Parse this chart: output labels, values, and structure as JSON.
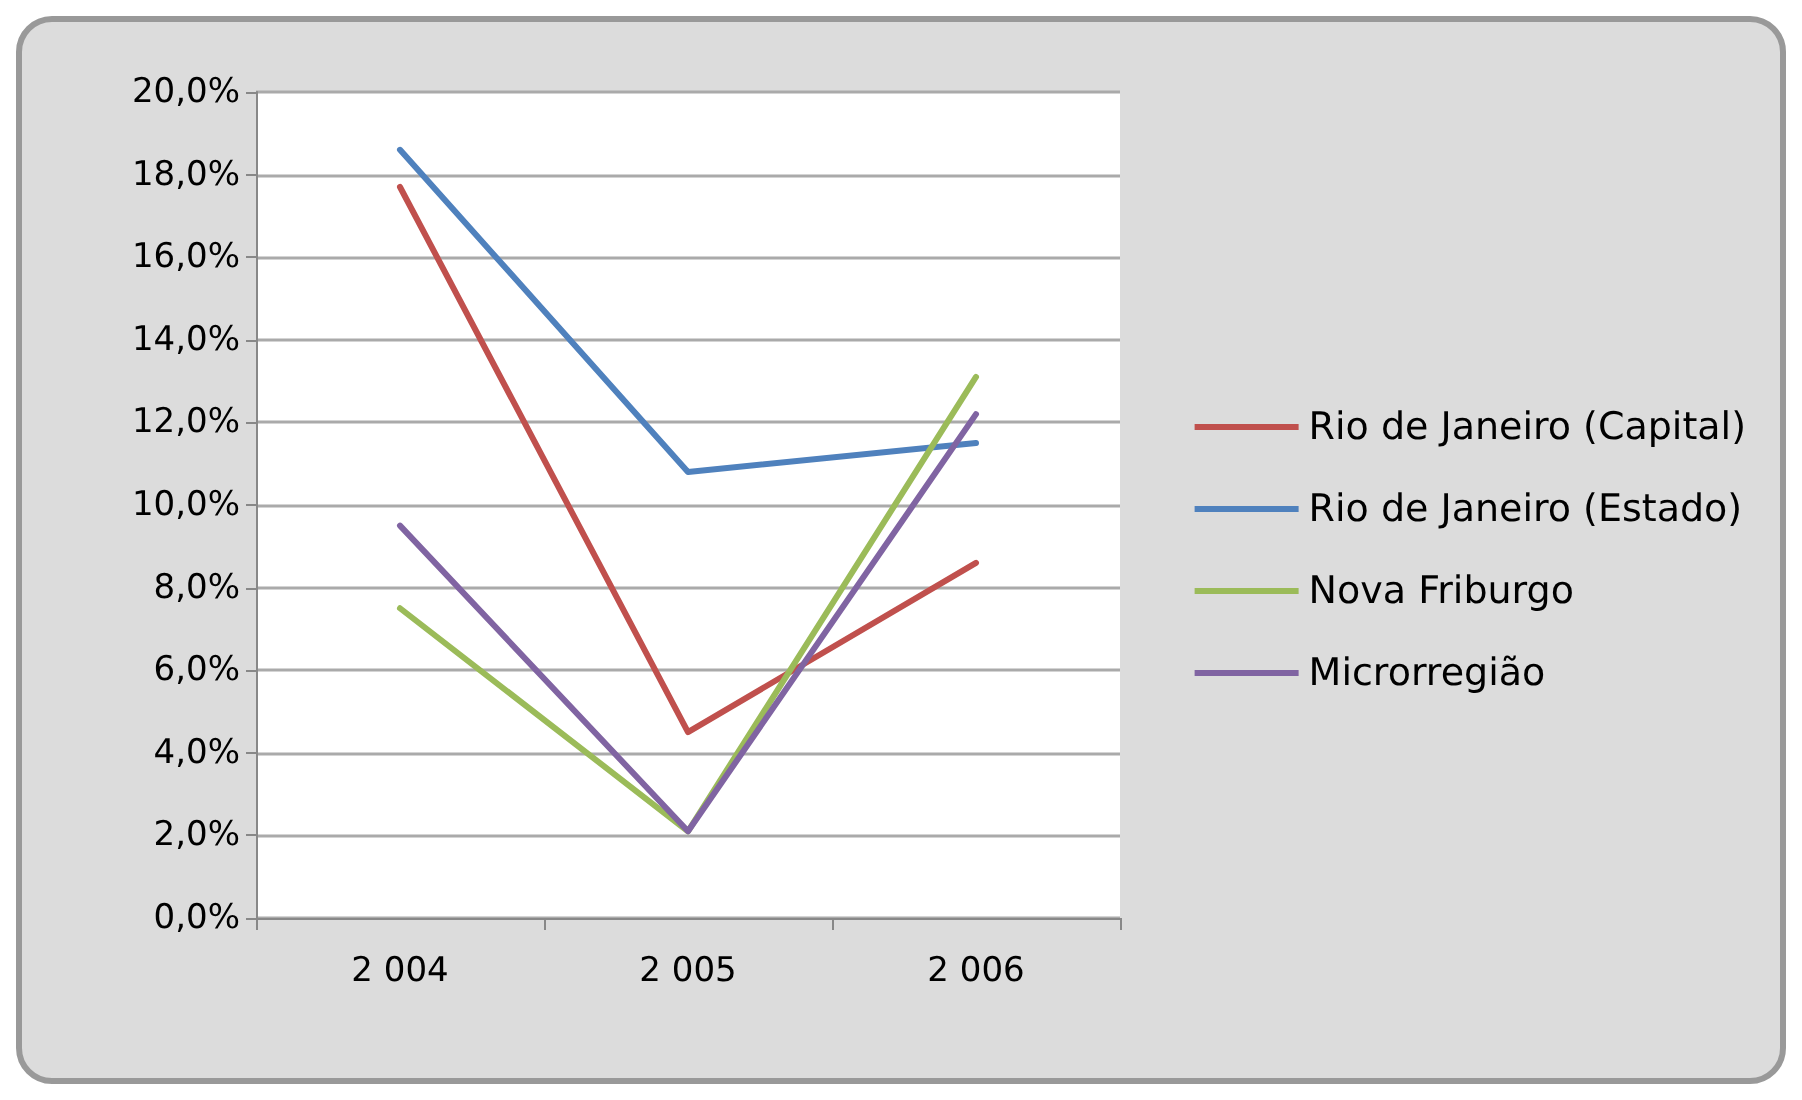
{
  "chart_data": {
    "type": "line",
    "categories": [
      "2 004",
      "2 005",
      "2 006"
    ],
    "series": [
      {
        "name": "Rio de Janeiro (Capital)",
        "color": "#c0504d",
        "values": [
          17.7,
          4.5,
          8.6
        ]
      },
      {
        "name": "Rio de Janeiro (Estado)",
        "color": "#4f81bd",
        "values": [
          18.6,
          10.8,
          11.5
        ]
      },
      {
        "name": "Nova Friburgo",
        "color": "#9bbb59",
        "values": [
          7.5,
          2.1,
          13.1
        ]
      },
      {
        "name": "Microrregião",
        "color": "#8064a2",
        "values": [
          9.5,
          2.1,
          12.2
        ]
      }
    ],
    "ylim": [
      0,
      20
    ],
    "yticks": [
      {
        "value": 0,
        "label": "0,0%"
      },
      {
        "value": 2,
        "label": "2,0%"
      },
      {
        "value": 4,
        "label": "4,0%"
      },
      {
        "value": 6,
        "label": "6,0%"
      },
      {
        "value": 8,
        "label": "8,0%"
      },
      {
        "value": 10,
        "label": "10,0%"
      },
      {
        "value": 12,
        "label": "12,0%"
      },
      {
        "value": 14,
        "label": "14,0%"
      },
      {
        "value": 16,
        "label": "16,0%"
      },
      {
        "value": 18,
        "label": "18,0%"
      },
      {
        "value": 20,
        "label": "20,0%"
      }
    ],
    "grid": "y",
    "legend": "right",
    "marker": "none",
    "line_style": "solid"
  }
}
